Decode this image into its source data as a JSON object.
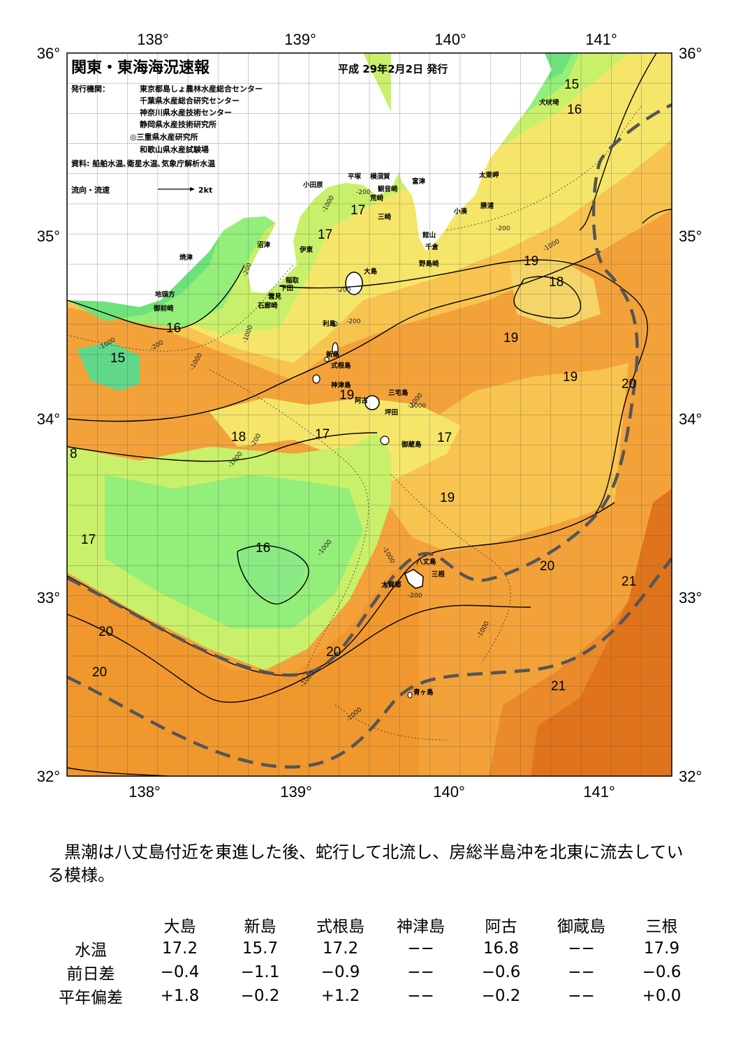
{
  "header": {
    "title": "関東・東海海況速報",
    "date": "平成 29年2月2日 発行",
    "issuer_label": "発行機関：",
    "issuers": [
      "東京都島しょ農林水産総合センター",
      "千葉県水産総合研究センター",
      "神奈川県水産技術センター",
      "静岡県水産技術研究所",
      "◎三重県水産研究所",
      "和歌山県水産試験場"
    ],
    "source": "資料: 船舶水温､衛星水温､気象庁解析水温",
    "flow_legend_label": "流向・流速",
    "flow_legend_unit": "2kt"
  },
  "axes": {
    "lon_top": [
      "138°",
      "139°",
      "140°",
      "141°"
    ],
    "lon_bottom": [
      "138°",
      "139°",
      "140°",
      "141°"
    ],
    "lat_left": [
      "36°",
      "35°",
      "34°",
      "33°",
      "32°"
    ],
    "lat_right": [
      "36°",
      "35°",
      "34°",
      "33°",
      "32°"
    ]
  },
  "isotherm_labels": [
    "15",
    "16",
    "16",
    "15",
    "17",
    "17",
    "19",
    "18",
    "19",
    "19",
    "20",
    "19",
    "17",
    "17",
    "18",
    "8",
    "19",
    "17",
    "16",
    "20",
    "21",
    "20",
    "20",
    "20",
    "21"
  ],
  "depth_labels": [
    "-200",
    "-1000",
    "-200",
    "-1000",
    "-200",
    "-1000",
    "-200",
    "-1000",
    "-1000",
    "-200",
    "-200",
    "-1000",
    "-1000",
    "-1000",
    "-1000",
    "-1000",
    "-200",
    "-1000",
    "-200",
    "-1000",
    "-1000"
  ],
  "place_names": [
    "犬吠埼",
    "太東岬",
    "勝浦",
    "小湊",
    "富津",
    "館山",
    "千倉",
    "野島崎",
    "横須賀",
    "観音崎",
    "平塚",
    "荒崎",
    "三崎",
    "小田原",
    "沼津",
    "伊東",
    "焼津",
    "稲取",
    "下田",
    "雲見",
    "石廊崎",
    "地頭方",
    "御前崎",
    "大島",
    "利島",
    "新島",
    "式根島",
    "神津島",
    "阿古",
    "三宅島",
    "坪田",
    "御蔵島",
    "八丈島",
    "三根",
    "大賀郷",
    "青ヶ島"
  ],
  "colors": {
    "t14": "#5fd88a",
    "t15": "#6ee27a",
    "t16": "#93ee7a",
    "t17": "#c9f06a",
    "t18": "#f5e66a",
    "t19": "#f8c450",
    "t20": "#f3a23a",
    "t21": "#ea8a2a",
    "t22": "#e0741c",
    "land": "#ffffff",
    "kuroshio_axis": "#555555"
  },
  "summary": "黒潮は八丈島付近を東進した後、蛇行して北流し、房総半島沖を北東に流去している模様。",
  "table": {
    "columns": [
      "大島",
      "新島",
      "式根島",
      "神津島",
      "阿古",
      "御蔵島",
      "三根"
    ],
    "rows": [
      {
        "label": "水温",
        "values": [
          "17.2",
          "15.7",
          "17.2",
          "−−",
          "16.8",
          "−−",
          "17.9"
        ]
      },
      {
        "label": "前日差",
        "values": [
          "−0.4",
          "−1.1",
          "−0.9",
          "−−",
          "−0.6",
          "−−",
          "−0.6"
        ]
      },
      {
        "label": "平年偏差",
        "values": [
          "+1.8",
          "−0.2",
          "+1.2",
          "−−",
          "−0.2",
          "−−",
          "+0.0"
        ]
      }
    ]
  }
}
